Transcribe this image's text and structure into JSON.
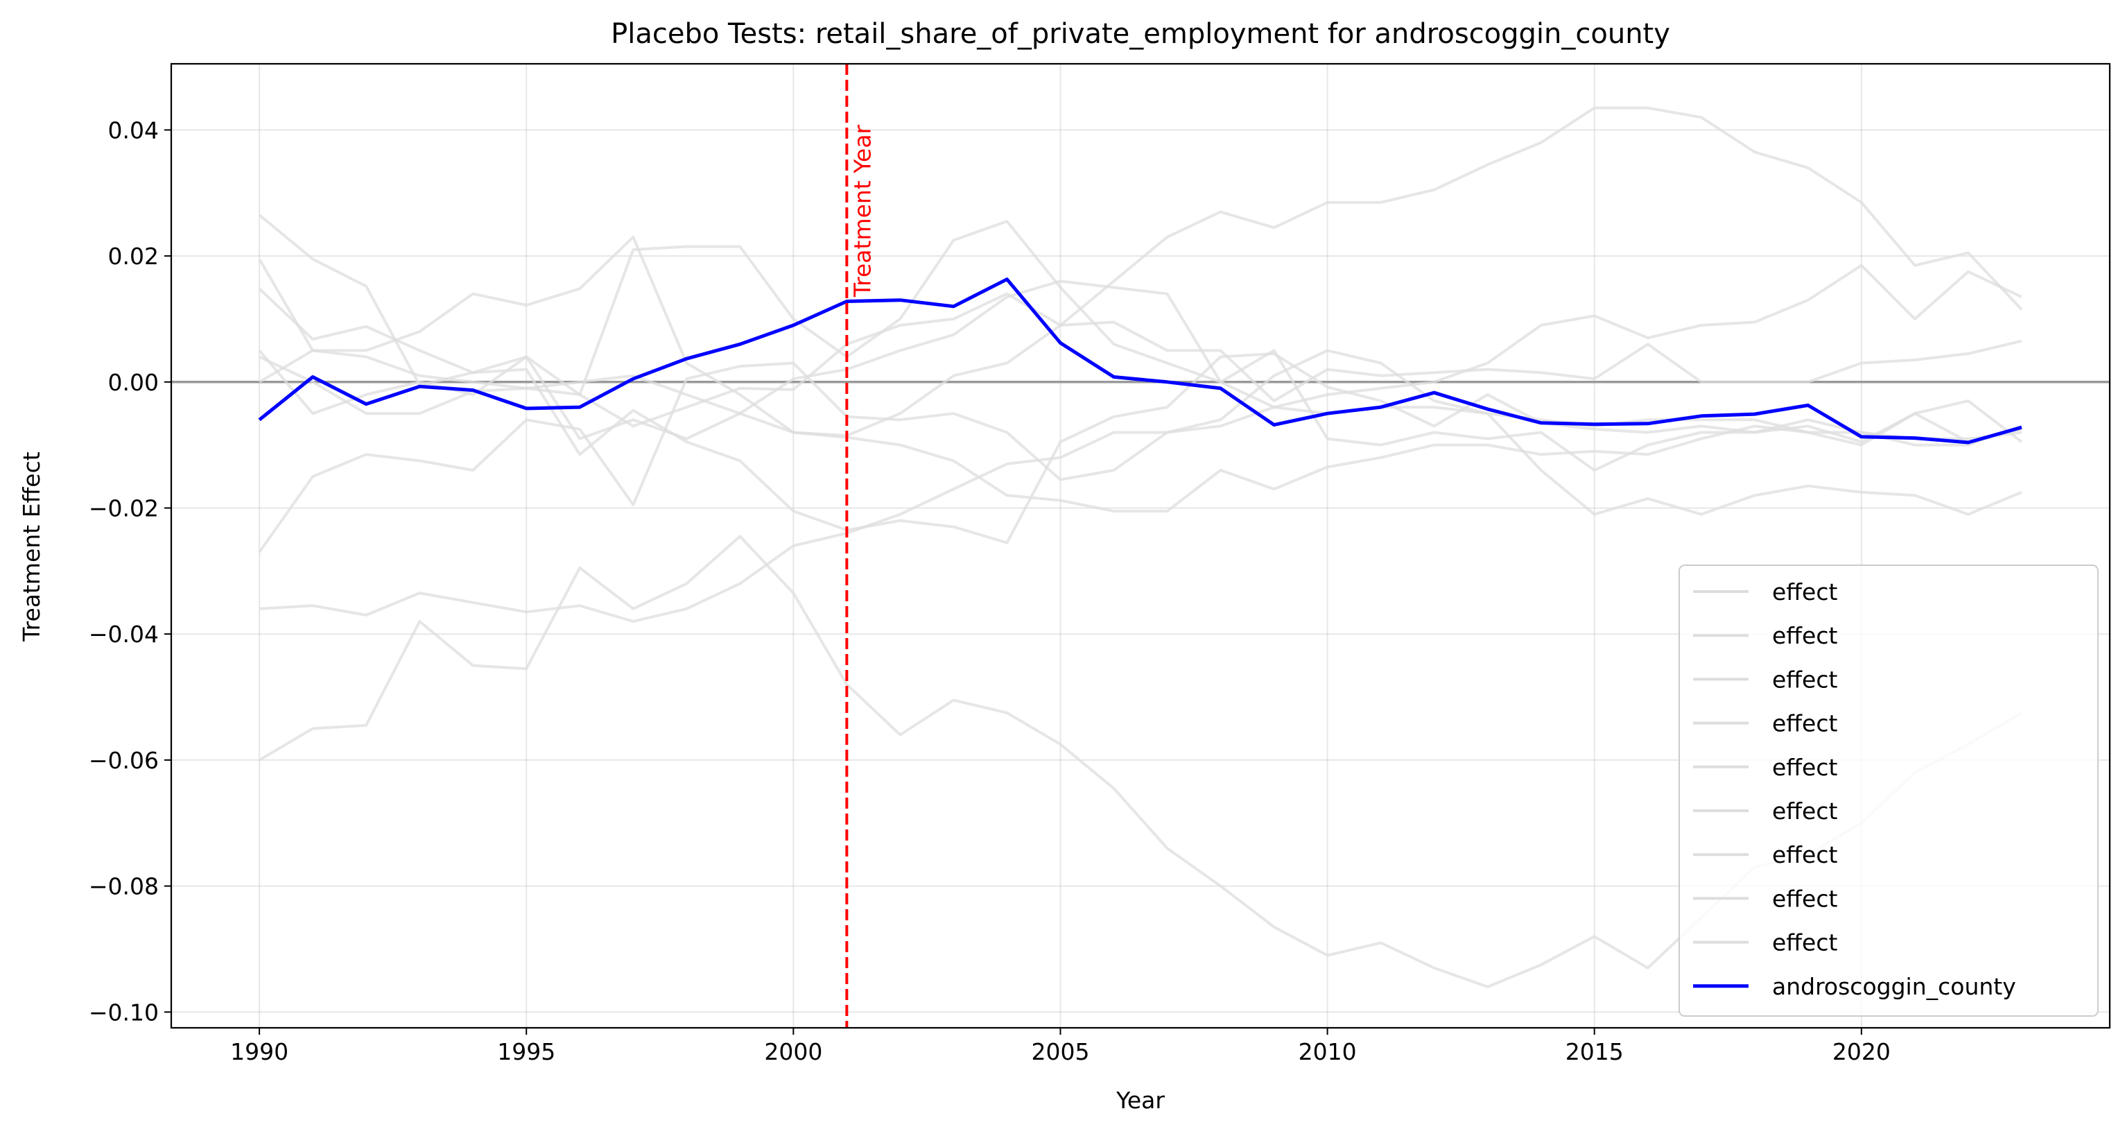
{
  "chart_data": {
    "type": "line",
    "title": "Placebo Tests: retail_share_of_private_employment for androscoggin_county",
    "xlabel": "Year",
    "ylabel": "Treatment Effect",
    "xlim": [
      1988.35,
      2024.65
    ],
    "ylim": [
      -0.1025,
      0.0505
    ],
    "xticks": [
      1990,
      1995,
      2000,
      2005,
      2010,
      2015,
      2020
    ],
    "yticks": [
      -0.1,
      -0.08,
      -0.06,
      -0.04,
      -0.02,
      0.0,
      0.02,
      0.04
    ],
    "ytick_labels": [
      "−0.10",
      "−0.08",
      "−0.06",
      "−0.04",
      "−0.02",
      "0.00",
      "0.02",
      "0.04"
    ],
    "grid": true,
    "legend_position": "lower-right",
    "treatment_year": 2001,
    "treatment_label": "Treatment Year",
    "reference_line": 0.0,
    "x": [
      1990,
      1991,
      1992,
      1993,
      1994,
      1995,
      1996,
      1997,
      1998,
      1999,
      2000,
      2001,
      2002,
      2003,
      2004,
      2005,
      2006,
      2007,
      2008,
      2009,
      2010,
      2011,
      2012,
      2013,
      2014,
      2015,
      2016,
      2017,
      2018,
      2019,
      2020,
      2021,
      2022,
      2023
    ],
    "series": [
      {
        "name": "effect",
        "color": "#dddddd",
        "values": [
          0.0265,
          0.0195,
          0.0152,
          -0.0005,
          0.0015,
          0.004,
          -0.002,
          -0.007,
          -0.004,
          -0.001,
          -0.0012,
          0.006,
          0.009,
          0.01,
          0.014,
          0.009,
          0.0095,
          0.005,
          0.005,
          -0.003,
          0.002,
          0.001,
          0.0015,
          0.002,
          0.0015,
          0.0005,
          0.006,
          0.0,
          0.0,
          0.0,
          0.003,
          0.0035,
          0.0045,
          0.0065
        ]
      },
      {
        "name": "effect",
        "color": "#dddddd",
        "values": [
          0.0195,
          0.005,
          0.005,
          0.008,
          0.014,
          0.0122,
          0.0148,
          0.023,
          0.003,
          -0.002,
          -0.008,
          -0.0088,
          -0.01,
          -0.0125,
          -0.018,
          -0.0188,
          -0.0205,
          -0.0205,
          -0.014,
          -0.017,
          -0.0135,
          -0.012,
          -0.01,
          -0.01,
          -0.0115,
          -0.011,
          -0.0115,
          -0.009,
          -0.007,
          -0.008,
          -0.01,
          -0.005,
          -0.003,
          -0.0095
        ]
      },
      {
        "name": "effect",
        "color": "#dddddd",
        "values": [
          0.0148,
          0.0068,
          0.0088,
          0.005,
          0.0015,
          0.002,
          -0.0115,
          -0.0045,
          -0.0095,
          -0.0125,
          -0.0205,
          -0.0235,
          -0.022,
          -0.023,
          -0.0255,
          -0.0095,
          -0.0055,
          -0.004,
          0.004,
          0.0045,
          -0.0008,
          -0.003,
          -0.007,
          -0.002,
          -0.0065,
          -0.0075,
          -0.008,
          -0.007,
          -0.008,
          -0.007,
          -0.0095,
          -0.005,
          -0.0095,
          -0.0075
        ]
      },
      {
        "name": "effect",
        "color": "#dddddd",
        "values": [
          0.005,
          -0.005,
          -0.002,
          0.0,
          -0.002,
          0.004,
          -0.009,
          -0.006,
          -0.009,
          -0.005,
          0.0005,
          0.002,
          0.005,
          0.0075,
          0.0135,
          0.016,
          0.015,
          0.014,
          0.0,
          0.005,
          -0.009,
          -0.01,
          -0.008,
          -0.009,
          -0.008,
          -0.014,
          -0.01,
          -0.008,
          -0.008,
          -0.006,
          -0.008,
          -0.01,
          -0.01,
          -0.007
        ]
      },
      {
        "name": "effect",
        "color": "#dddddd",
        "values": [
          -0.027,
          -0.015,
          -0.0115,
          -0.0125,
          -0.014,
          -0.006,
          -0.0075,
          -0.0195,
          0.0005,
          0.0025,
          0.003,
          -0.0055,
          -0.006,
          -0.005,
          -0.008,
          -0.0155,
          -0.014,
          -0.008,
          -0.006,
          0.001,
          0.005,
          0.003,
          -0.003,
          -0.005,
          -0.014,
          -0.021,
          -0.0185,
          -0.021,
          -0.018,
          -0.0165,
          -0.0175,
          -0.018,
          -0.021,
          -0.0175
        ]
      },
      {
        "name": "effect",
        "color": "#dddddd",
        "values": [
          -0.036,
          -0.0355,
          -0.037,
          -0.0335,
          -0.035,
          -0.0365,
          -0.0355,
          -0.038,
          -0.036,
          -0.032,
          -0.026,
          -0.024,
          -0.021,
          -0.017,
          -0.013,
          -0.012,
          -0.008,
          -0.008,
          -0.007,
          -0.004,
          -0.005,
          -0.004,
          -0.004,
          -0.005,
          -0.006,
          -0.007,
          -0.006,
          -0.006,
          -0.006,
          -0.008,
          -0.008,
          -0.009,
          -0.009,
          -0.008
        ]
      },
      {
        "name": "effect",
        "color": "#dddddd",
        "values": [
          -0.06,
          -0.055,
          -0.0545,
          -0.038,
          -0.045,
          -0.0455,
          -0.0295,
          -0.036,
          -0.032,
          -0.0245,
          -0.0335,
          -0.048,
          -0.056,
          -0.0505,
          -0.0525,
          -0.0575,
          -0.0645,
          -0.074,
          -0.08,
          -0.0865,
          -0.091,
          -0.089,
          -0.093,
          -0.096,
          -0.0925,
          -0.088,
          -0.093,
          -0.085,
          -0.077,
          -0.075,
          -0.07,
          -0.062,
          -0.0575,
          -0.0525
        ]
      },
      {
        "name": "effect",
        "color": "#dddddd",
        "values": [
          0.0,
          0.005,
          0.004,
          0.001,
          0.0,
          -0.001,
          0.0,
          0.001,
          -0.002,
          -0.005,
          -0.008,
          -0.0085,
          -0.005,
          0.001,
          0.003,
          0.009,
          0.016,
          0.023,
          0.027,
          0.0245,
          0.0285,
          0.0285,
          0.0305,
          0.0345,
          0.038,
          0.0435,
          0.0435,
          0.042,
          0.0365,
          0.034,
          0.0285,
          0.0185,
          0.0205,
          0.0115
        ]
      },
      {
        "name": "effect",
        "color": "#dddddd",
        "values": [
          0.004,
          0.0,
          -0.005,
          -0.005,
          -0.0015,
          -0.001,
          -0.002,
          0.021,
          0.0215,
          0.0215,
          0.01,
          0.004,
          0.01,
          0.0225,
          0.0255,
          0.015,
          0.006,
          0.003,
          0.0,
          -0.004,
          -0.002,
          -0.001,
          0.0,
          0.003,
          0.009,
          0.0105,
          0.007,
          0.009,
          0.0095,
          0.013,
          0.0185,
          0.01,
          0.0175,
          0.0135
        ]
      },
      {
        "name": "androscoggin_county",
        "color": "#0000ff",
        "values": [
          -0.006,
          0.0008,
          -0.0035,
          -0.0007,
          -0.0013,
          -0.0042,
          -0.004,
          0.0005,
          0.0037,
          0.006,
          0.009,
          0.0128,
          0.013,
          0.012,
          0.0163,
          0.0062,
          0.0008,
          0.0,
          -0.001,
          -0.0068,
          -0.005,
          -0.004,
          -0.0017,
          -0.0043,
          -0.0065,
          -0.0067,
          -0.0066,
          -0.0054,
          -0.0051,
          -0.0037,
          -0.0087,
          -0.0089,
          -0.0096,
          -0.0072
        ]
      }
    ]
  }
}
